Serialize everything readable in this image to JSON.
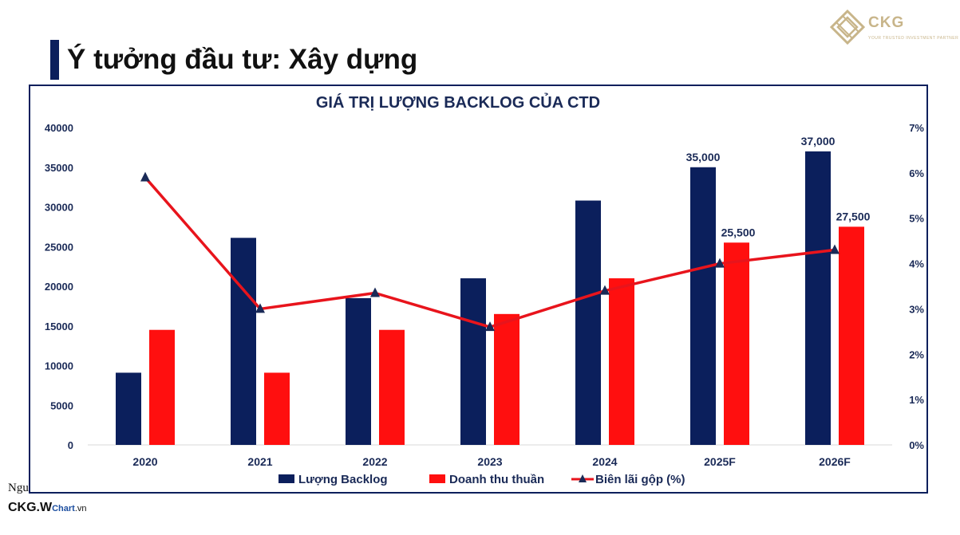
{
  "slide": {
    "title": "Ý tưởng đầu tư: Xây dựng",
    "logo_name": "CKG",
    "logo_tagline": "YOUR TRUSTED INVESTMENT PARTNER",
    "footer_cut_text": "Ngu",
    "brand_main": "CKG.W",
    "brand_sub": "Chart",
    "brand_tld": ".vn"
  },
  "colors": {
    "backlog": "#0b1f5c",
    "revenue": "#ff0f0f",
    "margin_line": "#e8141c",
    "margin_marker": "#1a2a57",
    "frame": "#0b1f5c",
    "title_text": "#1a2a57",
    "logo_gold": "#c8b58a"
  },
  "chart_data": {
    "type": "bar",
    "title": "GIÁ TRỊ LƯỢNG BACKLOG CỦA CTD",
    "categories": [
      "2020",
      "2021",
      "2022",
      "2023",
      "2024",
      "2025F",
      "2026F"
    ],
    "y_left": {
      "min": 0,
      "max": 40000,
      "ticks": [
        "0",
        "5000",
        "10000",
        "15000",
        "20000",
        "25000",
        "30000",
        "35000",
        "40000"
      ]
    },
    "y_right": {
      "min": 0,
      "max": 7,
      "ticks": [
        "0%",
        "1%",
        "2%",
        "3%",
        "4%",
        "5%",
        "6%",
        "7%"
      ]
    },
    "series": [
      {
        "name": "Lượng Backlog",
        "type": "bar",
        "axis": "left",
        "values": [
          9100,
          26100,
          18500,
          21000,
          30800,
          35000,
          37000
        ],
        "labels": [
          "",
          "",
          "",
          "",
          "",
          "35,000",
          "37,000"
        ]
      },
      {
        "name": "Doanh thu thuần",
        "type": "bar",
        "axis": "left",
        "values": [
          14500,
          9100,
          14500,
          16500,
          21000,
          25500,
          27500
        ],
        "labels": [
          "",
          "",
          "",
          "",
          "",
          "25,500",
          "27,500"
        ]
      },
      {
        "name": "Biên lãi gộp (%)",
        "type": "line",
        "axis": "right",
        "values": [
          5.9,
          3.0,
          3.35,
          2.6,
          3.4,
          4.0,
          4.3
        ]
      }
    ],
    "legend_position": "bottom",
    "grid": false
  }
}
